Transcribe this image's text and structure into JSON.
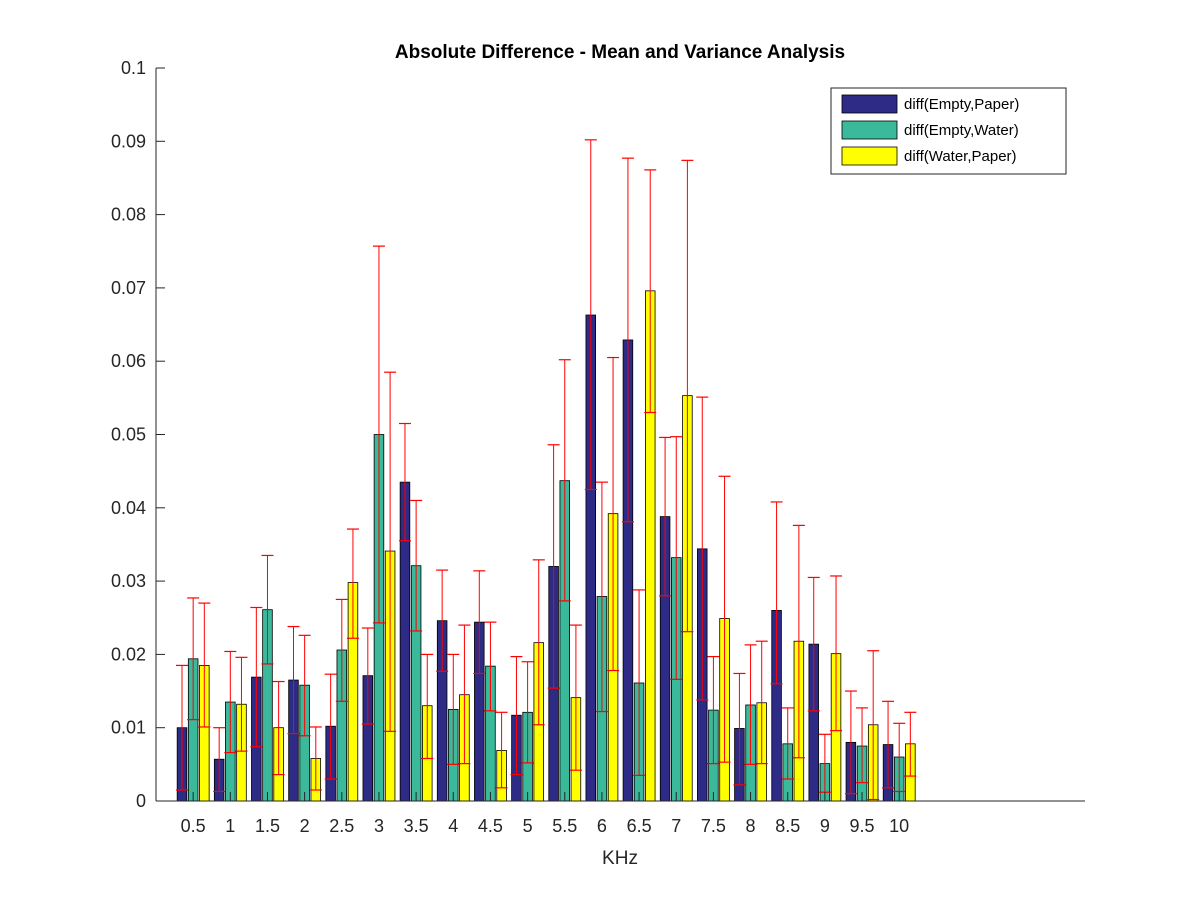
{
  "chart_data": {
    "type": "bar",
    "title": "Absolute Difference - Mean and Variance Analysis",
    "xlabel": "KHz",
    "ylabel": "",
    "ylim": [
      0,
      0.1
    ],
    "yticks": [
      "0",
      "0.01",
      "0.02",
      "0.03",
      "0.04",
      "0.05",
      "0.06",
      "0.07",
      "0.08",
      "0.09",
      "0.1"
    ],
    "ytick_values": [
      0,
      0.01,
      0.02,
      0.03,
      0.04,
      0.05,
      0.06,
      0.07,
      0.08,
      0.09,
      0.1
    ],
    "categories": [
      "0.5",
      "1",
      "1.5",
      "2",
      "2.5",
      "3",
      "3.5",
      "4",
      "4.5",
      "5",
      "5.5",
      "6",
      "6.5",
      "7",
      "7.5",
      "8",
      "8.5",
      "9",
      "9.5",
      "10"
    ],
    "category_values": [
      0.5,
      1,
      1.5,
      2,
      2.5,
      3,
      3.5,
      4,
      4.5,
      5,
      5.5,
      6,
      6.5,
      7,
      7.5,
      8,
      8.5,
      9,
      9.5,
      10
    ],
    "xlim": [
      0,
      12.5
    ],
    "error_bar_color": "#ff0000",
    "legend_position": "top-right",
    "grid": false,
    "series": [
      {
        "name": "diff(Empty,Paper)",
        "color": "#2d2b85",
        "values": [
          0.01,
          0.0057,
          0.0169,
          0.0165,
          0.0102,
          0.0171,
          0.0435,
          0.0246,
          0.0244,
          0.0117,
          0.032,
          0.0663,
          0.0629,
          0.0388,
          0.0344,
          0.0099,
          0.026,
          0.0214,
          0.008,
          0.0077
        ],
        "err_low": [
          0.0015,
          0.0013,
          0.0074,
          0.0092,
          0.003,
          0.0105,
          0.0355,
          0.0177,
          0.0174,
          0.0036,
          0.0154,
          0.0425,
          0.0381,
          0.028,
          0.0138,
          0.0022,
          0.016,
          0.0123,
          0.001,
          0.0018
        ],
        "err_high": [
          0.0185,
          0.01,
          0.0264,
          0.0238,
          0.0173,
          0.0236,
          0.0515,
          0.0315,
          0.0314,
          0.0197,
          0.0486,
          0.0902,
          0.0877,
          0.0496,
          0.0551,
          0.0174,
          0.0408,
          0.0305,
          0.015,
          0.0136
        ]
      },
      {
        "name": "diff(Empty,Water)",
        "color": "#3ab99b",
        "values": [
          0.0194,
          0.0135,
          0.0261,
          0.0158,
          0.0206,
          0.05,
          0.0321,
          0.0125,
          0.0184,
          0.0121,
          0.0437,
          0.0279,
          0.0161,
          0.0332,
          0.0124,
          0.0131,
          0.0078,
          0.0051,
          0.0075,
          0.006
        ],
        "err_low": [
          0.0111,
          0.0066,
          0.0187,
          0.0089,
          0.0136,
          0.0243,
          0.0232,
          0.005,
          0.0123,
          0.0052,
          0.0273,
          0.0122,
          0.0035,
          0.0166,
          0.0051,
          0.005,
          0.003,
          0.0012,
          0.0025,
          0.0013
        ],
        "err_high": [
          0.0277,
          0.0204,
          0.0335,
          0.0226,
          0.0275,
          0.0757,
          0.041,
          0.02,
          0.0244,
          0.019,
          0.0602,
          0.0435,
          0.0288,
          0.0497,
          0.0197,
          0.0213,
          0.0127,
          0.0091,
          0.0127,
          0.0106
        ]
      },
      {
        "name": "diff(Water,Paper)",
        "color": "#ffff00",
        "values": [
          0.0185,
          0.0132,
          0.01,
          0.0058,
          0.0298,
          0.0341,
          0.013,
          0.0145,
          0.0069,
          0.0216,
          0.0141,
          0.0392,
          0.0696,
          0.0553,
          0.0249,
          0.0134,
          0.0218,
          0.0201,
          0.0104,
          0.0078
        ],
        "err_low": [
          0.0101,
          0.0068,
          0.0036,
          0.0015,
          0.0222,
          0.0095,
          0.0058,
          0.0051,
          0.0018,
          0.0104,
          0.0042,
          0.0178,
          0.053,
          0.0231,
          0.0053,
          0.0051,
          0.0059,
          0.0096,
          0.0002,
          0.0034
        ],
        "err_high": [
          0.027,
          0.0196,
          0.0163,
          0.0101,
          0.0371,
          0.0585,
          0.02,
          0.024,
          0.0121,
          0.0329,
          0.024,
          0.0605,
          0.0861,
          0.0874,
          0.0443,
          0.0218,
          0.0376,
          0.0307,
          0.0205,
          0.0121
        ]
      }
    ]
  }
}
